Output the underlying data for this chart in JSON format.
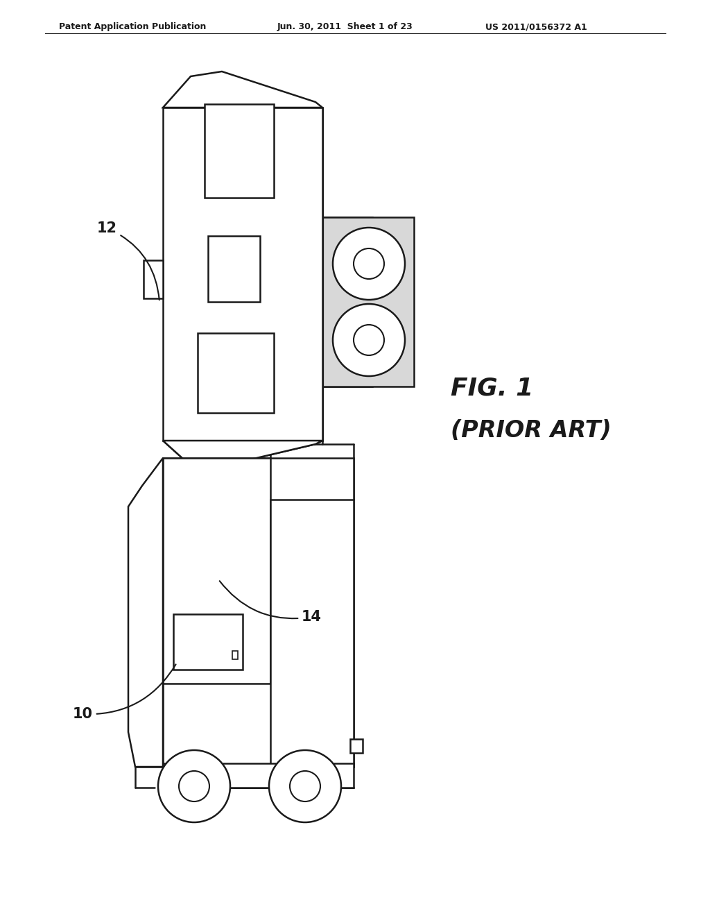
{
  "background_color": "#ffffff",
  "line_color": "#1a1a1a",
  "header_left": "Patent Application Publication",
  "header_mid": "Jun. 30, 2011  Sheet 1 of 23",
  "header_right": "US 2011/0156372 A1",
  "fig1_label": "FIG. 1",
  "prior_art_label": "(PRIOR ART)",
  "label_12": "12",
  "label_14": "14",
  "label_10": "10",
  "lw": 1.8
}
